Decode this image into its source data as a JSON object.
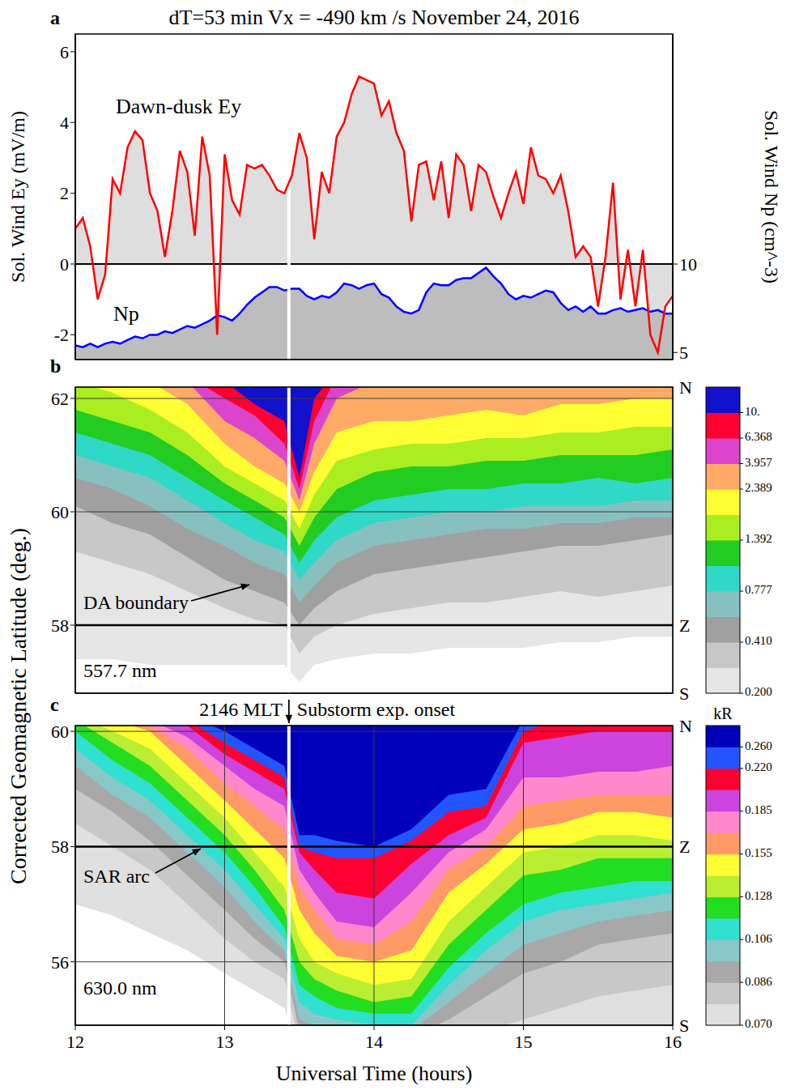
{
  "chart_data": [
    {
      "type": "line",
      "panel": "a",
      "title": "dT=53 min  Vx = -490 km /s    November 24, 2016",
      "x": [
        12,
        12.05,
        12.1,
        12.15,
        12.2,
        12.25,
        12.3,
        12.35,
        12.4,
        12.45,
        12.5,
        12.55,
        12.6,
        12.65,
        12.7,
        12.75,
        12.8,
        12.85,
        12.9,
        12.95,
        13,
        13.05,
        13.1,
        13.15,
        13.2,
        13.25,
        13.3,
        13.35,
        13.4,
        13.45,
        13.5,
        13.55,
        13.6,
        13.65,
        13.7,
        13.75,
        13.8,
        13.85,
        13.9,
        13.95,
        14,
        14.05,
        14.1,
        14.15,
        14.2,
        14.25,
        14.3,
        14.35,
        14.4,
        14.45,
        14.5,
        14.55,
        14.6,
        14.65,
        14.7,
        14.75,
        14.8,
        14.85,
        14.9,
        14.95,
        15,
        15.05,
        15.1,
        15.15,
        15.2,
        15.25,
        15.3,
        15.35,
        15.4,
        15.45,
        15.5,
        15.55,
        15.6,
        15.65,
        15.7,
        15.75,
        15.8,
        15.85,
        15.9,
        15.95,
        16
      ],
      "xlim": [
        12,
        16
      ],
      "xticks": [
        12,
        13,
        14,
        15,
        16
      ],
      "tick_labels": "y",
      "grid": "x",
      "ylabel": "Sol. Wind Ey (mV/m)",
      "ylim": [
        -2.7,
        6.5
      ],
      "yticks": [
        -2,
        0,
        2,
        4,
        6
      ],
      "y2label": "Sol. Wind Np  (cm^-3)",
      "y2lim": [
        4.6,
        23
      ],
      "y2ticks": [
        5,
        10
      ],
      "hline": 0,
      "series": [
        {
          "name": "Dawn-dusk Ey",
          "color": "#ff0000",
          "values": [
            1.0,
            1.3,
            0.5,
            -1.0,
            -0.3,
            2.4,
            2.0,
            3.3,
            3.75,
            3.5,
            2.0,
            1.5,
            0.2,
            1.5,
            3.2,
            2.6,
            0.8,
            3.6,
            2.5,
            -2.0,
            3.1,
            1.8,
            1.4,
            2.8,
            2.7,
            2.8,
            2.5,
            2.1,
            2.0,
            2.5,
            3.7,
            3.0,
            0.7,
            2.6,
            2.0,
            3.6,
            4.0,
            4.8,
            5.3,
            5.2,
            5.1,
            4.2,
            4.6,
            3.7,
            3.2,
            1.2,
            2.8,
            2.9,
            1.8,
            2.9,
            1.3,
            3.1,
            2.8,
            1.5,
            2.8,
            2.6,
            1.9,
            1.3,
            2.0,
            2.6,
            1.7,
            3.3,
            2.5,
            2.4,
            2.0,
            2.5,
            1.5,
            0.2,
            0.5,
            0.2,
            -1.2,
            0.2,
            2.3,
            -1.0,
            0.4,
            -1.2,
            0.4,
            -2.0,
            -2.5,
            -1.2,
            -0.9
          ]
        },
        {
          "name": "Np",
          "color": "#0000ff",
          "axis": "y2",
          "values": [
            5.4,
            5.3,
            5.5,
            5.3,
            5.5,
            5.6,
            5.5,
            5.7,
            5.9,
            5.8,
            6.0,
            6.0,
            6.2,
            6.1,
            6.3,
            6.5,
            6.4,
            6.6,
            6.8,
            7.1,
            7.0,
            6.8,
            7.2,
            7.7,
            8.1,
            8.4,
            8.7,
            8.7,
            8.5,
            8.6,
            8.6,
            8.2,
            8.0,
            8.2,
            8.1,
            8.4,
            8.9,
            8.8,
            8.6,
            8.8,
            8.9,
            8.3,
            8.1,
            7.6,
            7.3,
            7.2,
            7.4,
            8.4,
            8.9,
            8.8,
            8.8,
            9.1,
            9.2,
            9.2,
            9.5,
            9.8,
            9.3,
            8.9,
            8.3,
            8.0,
            8.2,
            8.1,
            8.3,
            8.5,
            8.4,
            7.8,
            7.4,
            7.6,
            7.3,
            7.6,
            7.2,
            7.2,
            7.4,
            7.5,
            7.3,
            7.4,
            7.5,
            7.3,
            7.4,
            7.2,
            7.2
          ]
        }
      ]
    },
    {
      "type": "contour",
      "panel": "b",
      "x": [
        12,
        12.25,
        12.5,
        12.75,
        13,
        13.2,
        13.4,
        13.5,
        13.6,
        13.75,
        14,
        14.25,
        14.5,
        14.75,
        15,
        15.25,
        15.5,
        15.75,
        16
      ],
      "xlim": [
        12,
        16
      ],
      "xticks": [
        12,
        13,
        14,
        15,
        16
      ],
      "tick_labels": "y",
      "grid": true,
      "ylim": [
        56.8,
        62.2
      ],
      "yticks": [
        58,
        60,
        62
      ],
      "hline": 58,
      "side_labels": [
        "N",
        "Z",
        "S"
      ],
      "wavelength": "557.7 nm",
      "boundary_label": "DA boundary",
      "contours": [
        {
          "level": 0.2,
          "color": "#e6e6e6",
          "values": [
            57.4,
            57.4,
            57.3,
            57.3,
            57.3,
            57.3,
            57.3,
            57.0,
            57.3,
            57.4,
            57.5,
            57.5,
            57.6,
            57.6,
            57.6,
            57.7,
            57.7,
            57.8,
            57.8
          ]
        },
        {
          "level": 0.3,
          "color": "#c8c8c8",
          "values": [
            59.3,
            59.1,
            58.9,
            58.6,
            58.3,
            58.1,
            58.0,
            57.5,
            57.8,
            58.0,
            58.2,
            58.3,
            58.4,
            58.4,
            58.5,
            58.6,
            58.5,
            58.6,
            58.7
          ]
        },
        {
          "level": 0.41,
          "color": "#a0a0a0",
          "values": [
            60.1,
            59.8,
            59.6,
            59.2,
            58.8,
            58.6,
            58.4,
            58.0,
            58.3,
            58.6,
            58.9,
            59.0,
            59.1,
            59.2,
            59.3,
            59.4,
            59.4,
            59.5,
            59.6
          ]
        },
        {
          "level": 0.55,
          "color": "#88c0c0",
          "values": [
            60.6,
            60.4,
            60.1,
            59.7,
            59.4,
            59.1,
            58.9,
            58.4,
            58.7,
            59.1,
            59.4,
            59.5,
            59.6,
            59.7,
            59.7,
            59.8,
            59.8,
            59.9,
            59.9
          ]
        },
        {
          "level": 0.777,
          "color": "#30d8c8",
          "values": [
            61.0,
            60.8,
            60.6,
            60.2,
            59.8,
            59.5,
            59.3,
            58.8,
            59.1,
            59.5,
            59.8,
            59.9,
            60.0,
            60.0,
            60.1,
            60.1,
            60.1,
            60.2,
            60.2
          ]
        },
        {
          "level": 1.0,
          "color": "#22cc22",
          "values": [
            61.4,
            61.2,
            61.0,
            60.6,
            60.2,
            59.9,
            59.6,
            59.1,
            59.5,
            59.9,
            60.2,
            60.3,
            60.4,
            60.4,
            60.5,
            60.5,
            60.6,
            60.5,
            60.6
          ]
        },
        {
          "level": 1.392,
          "color": "#aaee22",
          "values": [
            61.8,
            61.6,
            61.4,
            61.0,
            60.5,
            60.2,
            59.9,
            59.4,
            59.9,
            60.4,
            60.7,
            60.8,
            60.8,
            60.9,
            60.9,
            61.0,
            61.0,
            61.0,
            61.1
          ]
        },
        {
          "level": 1.8,
          "color": "#ffff33",
          "values": [
            62.3,
            62.1,
            61.8,
            61.4,
            60.8,
            60.5,
            60.2,
            59.7,
            60.3,
            60.9,
            61.1,
            61.2,
            61.2,
            61.3,
            61.3,
            61.4,
            61.4,
            61.5,
            61.5
          ]
        },
        {
          "level": 2.389,
          "color": "#ffaa66",
          "values": [
            62.5,
            62.4,
            62.3,
            61.9,
            61.2,
            60.8,
            60.5,
            60.0,
            60.7,
            61.4,
            61.6,
            61.6,
            61.7,
            61.8,
            61.7,
            61.9,
            61.9,
            62.0,
            62.0
          ]
        },
        {
          "level": 3.957,
          "color": "#dd44cc",
          "values": [
            62.6,
            62.5,
            62.4,
            62.3,
            61.6,
            61.3,
            60.9,
            60.2,
            61.2,
            62.0,
            62.3,
            62.3,
            62.3,
            62.3,
            62.3,
            62.3,
            62.3,
            62.4,
            62.4
          ]
        },
        {
          "level": 6.368,
          "color": "#ff0033",
          "values": [
            62.7,
            62.6,
            62.5,
            62.4,
            62.0,
            61.7,
            61.2,
            60.4,
            61.6,
            62.4,
            62.4,
            62.4,
            62.4,
            62.4,
            62.4,
            62.4,
            62.4,
            62.5,
            62.5
          ]
        },
        {
          "level": 10,
          "color": "#1111cc",
          "values": [
            62.8,
            62.7,
            62.6,
            62.5,
            62.3,
            61.9,
            61.6,
            60.6,
            62.0,
            62.5,
            62.5,
            62.5,
            62.5,
            62.5,
            62.5,
            62.5,
            62.5,
            62.6,
            62.6
          ]
        }
      ],
      "colorbar": {
        "ticks": [
          {
            "value": 0.2,
            "label": "0.200"
          },
          {
            "value": 0.41,
            "label": "0.410"
          },
          0.777,
          1.392,
          2.389,
          3.957,
          6.368,
          {
            "value": 10,
            "label": "10."
          }
        ]
      }
    },
    {
      "type": "contour",
      "panel": "c",
      "x": [
        12,
        12.25,
        12.5,
        12.75,
        13,
        13.2,
        13.4,
        13.5,
        13.6,
        13.75,
        14,
        14.25,
        14.5,
        14.75,
        15,
        15.25,
        15.5,
        15.75,
        16
      ],
      "xlim": [
        12,
        16
      ],
      "xticks": [
        12,
        13,
        14,
        15,
        16
      ],
      "tick_labels": true,
      "grid": true,
      "xlabel": "Universal Time (hours)",
      "ylabel": "Corrected Geomagnetic Latitude (deg.)",
      "ylim": [
        54.9,
        60.1
      ],
      "yticks": [
        56,
        58,
        60
      ],
      "hline": 58,
      "side_labels": [
        "N",
        "Z",
        "S"
      ],
      "wavelength": "630.0 nm",
      "arc_label": "SAR arc",
      "onset": {
        "x": 13.43,
        "mlt": "2146 MLT",
        "label": "Substorm exp. onset"
      },
      "contours": [
        {
          "level": 0.07,
          "color": "#e0e0e0",
          "values": [
            57.0,
            56.8,
            56.5,
            56.2,
            55.8,
            55.5,
            55.2,
            54.5,
            54.5,
            54.5,
            54.5,
            54.5,
            54.5,
            54.5,
            54.6,
            54.7,
            54.8,
            54.8,
            54.8
          ]
        },
        {
          "level": 0.078,
          "color": "#c8c8c8",
          "values": [
            58.4,
            58.0,
            57.6,
            57.0,
            56.4,
            56.0,
            55.7,
            54.6,
            54.6,
            54.6,
            54.6,
            54.6,
            54.7,
            54.8,
            55.0,
            55.2,
            55.4,
            55.5,
            55.6
          ]
        },
        {
          "level": 0.086,
          "color": "#a8a8a8",
          "values": [
            59.0,
            58.6,
            58.1,
            57.5,
            56.9,
            56.4,
            56.0,
            54.8,
            54.7,
            54.7,
            54.7,
            54.7,
            55.0,
            55.4,
            55.8,
            56.0,
            56.3,
            56.4,
            56.5
          ]
        },
        {
          "level": 0.096,
          "color": "#88c8c8",
          "values": [
            59.4,
            58.9,
            58.5,
            57.9,
            57.3,
            56.7,
            56.2,
            55.0,
            54.9,
            54.8,
            54.8,
            54.8,
            55.3,
            55.8,
            56.3,
            56.5,
            56.7,
            56.8,
            56.9
          ]
        },
        {
          "level": 0.106,
          "color": "#30e0d0",
          "values": [
            59.7,
            59.2,
            58.8,
            58.2,
            57.6,
            57.0,
            56.4,
            55.3,
            55.1,
            55.0,
            54.9,
            54.9,
            55.6,
            56.2,
            56.7,
            56.9,
            57.0,
            57.1,
            57.2
          ]
        },
        {
          "level": 0.117,
          "color": "#22dd22",
          "values": [
            60.0,
            59.5,
            59.1,
            58.5,
            57.9,
            57.3,
            56.6,
            55.6,
            55.4,
            55.2,
            55.1,
            55.1,
            55.9,
            56.5,
            57.0,
            57.2,
            57.3,
            57.4,
            57.4
          ]
        },
        {
          "level": 0.128,
          "color": "#bbee33",
          "values": [
            60.2,
            59.8,
            59.4,
            58.8,
            58.2,
            57.6,
            56.9,
            56.0,
            55.7,
            55.5,
            55.3,
            55.4,
            56.3,
            56.9,
            57.5,
            57.6,
            57.8,
            57.8,
            57.8
          ]
        },
        {
          "level": 0.14,
          "color": "#ffff33",
          "values": [
            60.3,
            60.0,
            59.7,
            59.1,
            58.5,
            57.9,
            57.3,
            56.4,
            56.0,
            55.8,
            55.6,
            55.7,
            56.7,
            57.3,
            57.9,
            58.0,
            58.2,
            58.2,
            58.1
          ]
        },
        {
          "level": 0.155,
          "color": "#ff9966",
          "values": [
            60.4,
            60.2,
            60.0,
            59.4,
            58.8,
            58.3,
            57.8,
            56.9,
            56.5,
            56.1,
            56.0,
            56.2,
            57.2,
            57.7,
            58.3,
            58.4,
            58.6,
            58.6,
            58.5
          ]
        },
        {
          "level": 0.17,
          "color": "#ff88cc",
          "values": [
            60.5,
            60.3,
            60.1,
            59.7,
            59.1,
            58.7,
            58.3,
            57.3,
            56.9,
            56.4,
            56.3,
            56.7,
            57.6,
            58.0,
            58.7,
            58.8,
            58.9,
            58.9,
            58.9
          ]
        },
        {
          "level": 0.185,
          "color": "#cc44dd",
          "values": [
            60.6,
            60.4,
            60.2,
            59.9,
            59.4,
            59.0,
            58.7,
            57.6,
            57.2,
            56.7,
            56.6,
            57.2,
            57.9,
            58.3,
            59.2,
            59.2,
            59.3,
            59.3,
            59.4
          ]
        },
        {
          "level": 0.2,
          "color": "#ff0033",
          "values": [
            60.7,
            60.5,
            60.3,
            60.1,
            59.6,
            59.3,
            59.0,
            57.9,
            57.6,
            57.2,
            57.1,
            57.7,
            58.2,
            58.5,
            59.8,
            59.9,
            60.0,
            60.0,
            60.0
          ]
        },
        {
          "level": 0.22,
          "color": "#2255ff",
          "values": [
            60.8,
            60.6,
            60.4,
            60.2,
            59.8,
            59.5,
            59.2,
            58.0,
            57.9,
            57.8,
            57.8,
            58.1,
            58.6,
            58.7,
            60.0,
            60.2,
            60.2,
            60.2,
            60.2
          ]
        },
        {
          "level": 0.26,
          "color": "#0000bb",
          "values": [
            60.9,
            60.7,
            60.5,
            60.3,
            60.0,
            59.7,
            59.4,
            58.2,
            58.2,
            58.1,
            58.0,
            58.3,
            58.9,
            59.0,
            60.2,
            60.3,
            60.3,
            60.3,
            60.3
          ]
        }
      ],
      "colorbar": {
        "label": "kR",
        "ticks": [
          {
            "value": 0.07,
            "label": "0.070"
          },
          0.086,
          0.106,
          0.128,
          0.155,
          0.185,
          {
            "value": 0.22,
            "label": "0.220"
          },
          {
            "value": 0.26,
            "label": "0.260"
          }
        ]
      }
    }
  ]
}
